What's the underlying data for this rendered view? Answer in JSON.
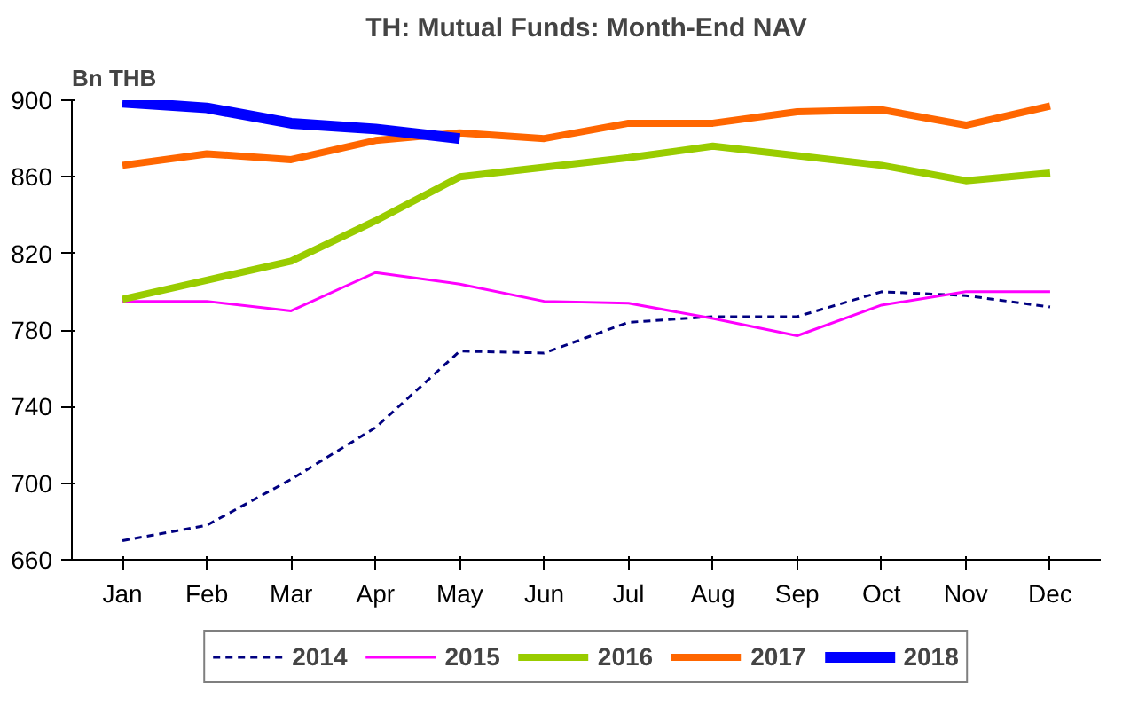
{
  "chart_data": {
    "type": "line",
    "title": "TH: Mutual Funds: Month-End NAV",
    "ylabel": "Bn THB",
    "categories": [
      "Jan",
      "Feb",
      "Mar",
      "Apr",
      "May",
      "Jun",
      "Jul",
      "Aug",
      "Sep",
      "Oct",
      "Nov",
      "Dec"
    ],
    "ylim": [
      660,
      900
    ],
    "yticks": [
      660,
      700,
      740,
      780,
      820,
      860,
      900
    ],
    "grid": false,
    "legend": "bottom",
    "marker": "none",
    "series": [
      {
        "name": "2014",
        "color": "#000080",
        "line_style": "dashed",
        "values": [
          670,
          678,
          702,
          729,
          769,
          768,
          784,
          787,
          787,
          800,
          798,
          792
        ]
      },
      {
        "name": "2015",
        "color": "#ff00ff",
        "line_style": "solid",
        "values": [
          795,
          795,
          790,
          810,
          804,
          795,
          794,
          786,
          777,
          793,
          800,
          800
        ]
      },
      {
        "name": "2016",
        "color": "#99cc00",
        "line_style": "solid",
        "values": [
          796,
          806,
          816,
          837,
          860,
          865,
          870,
          876,
          871,
          866,
          858,
          862
        ]
      },
      {
        "name": "2017",
        "color": "#ff6600",
        "line_style": "solid",
        "values": [
          866,
          872,
          869,
          879,
          883,
          880,
          888,
          888,
          894,
          895,
          887,
          897
        ]
      },
      {
        "name": "2018",
        "color": "#0000ff",
        "line_style": "solid",
        "values": [
          899,
          896,
          888,
          885,
          880,
          null,
          null,
          null,
          null,
          null,
          null,
          null
        ]
      }
    ]
  }
}
